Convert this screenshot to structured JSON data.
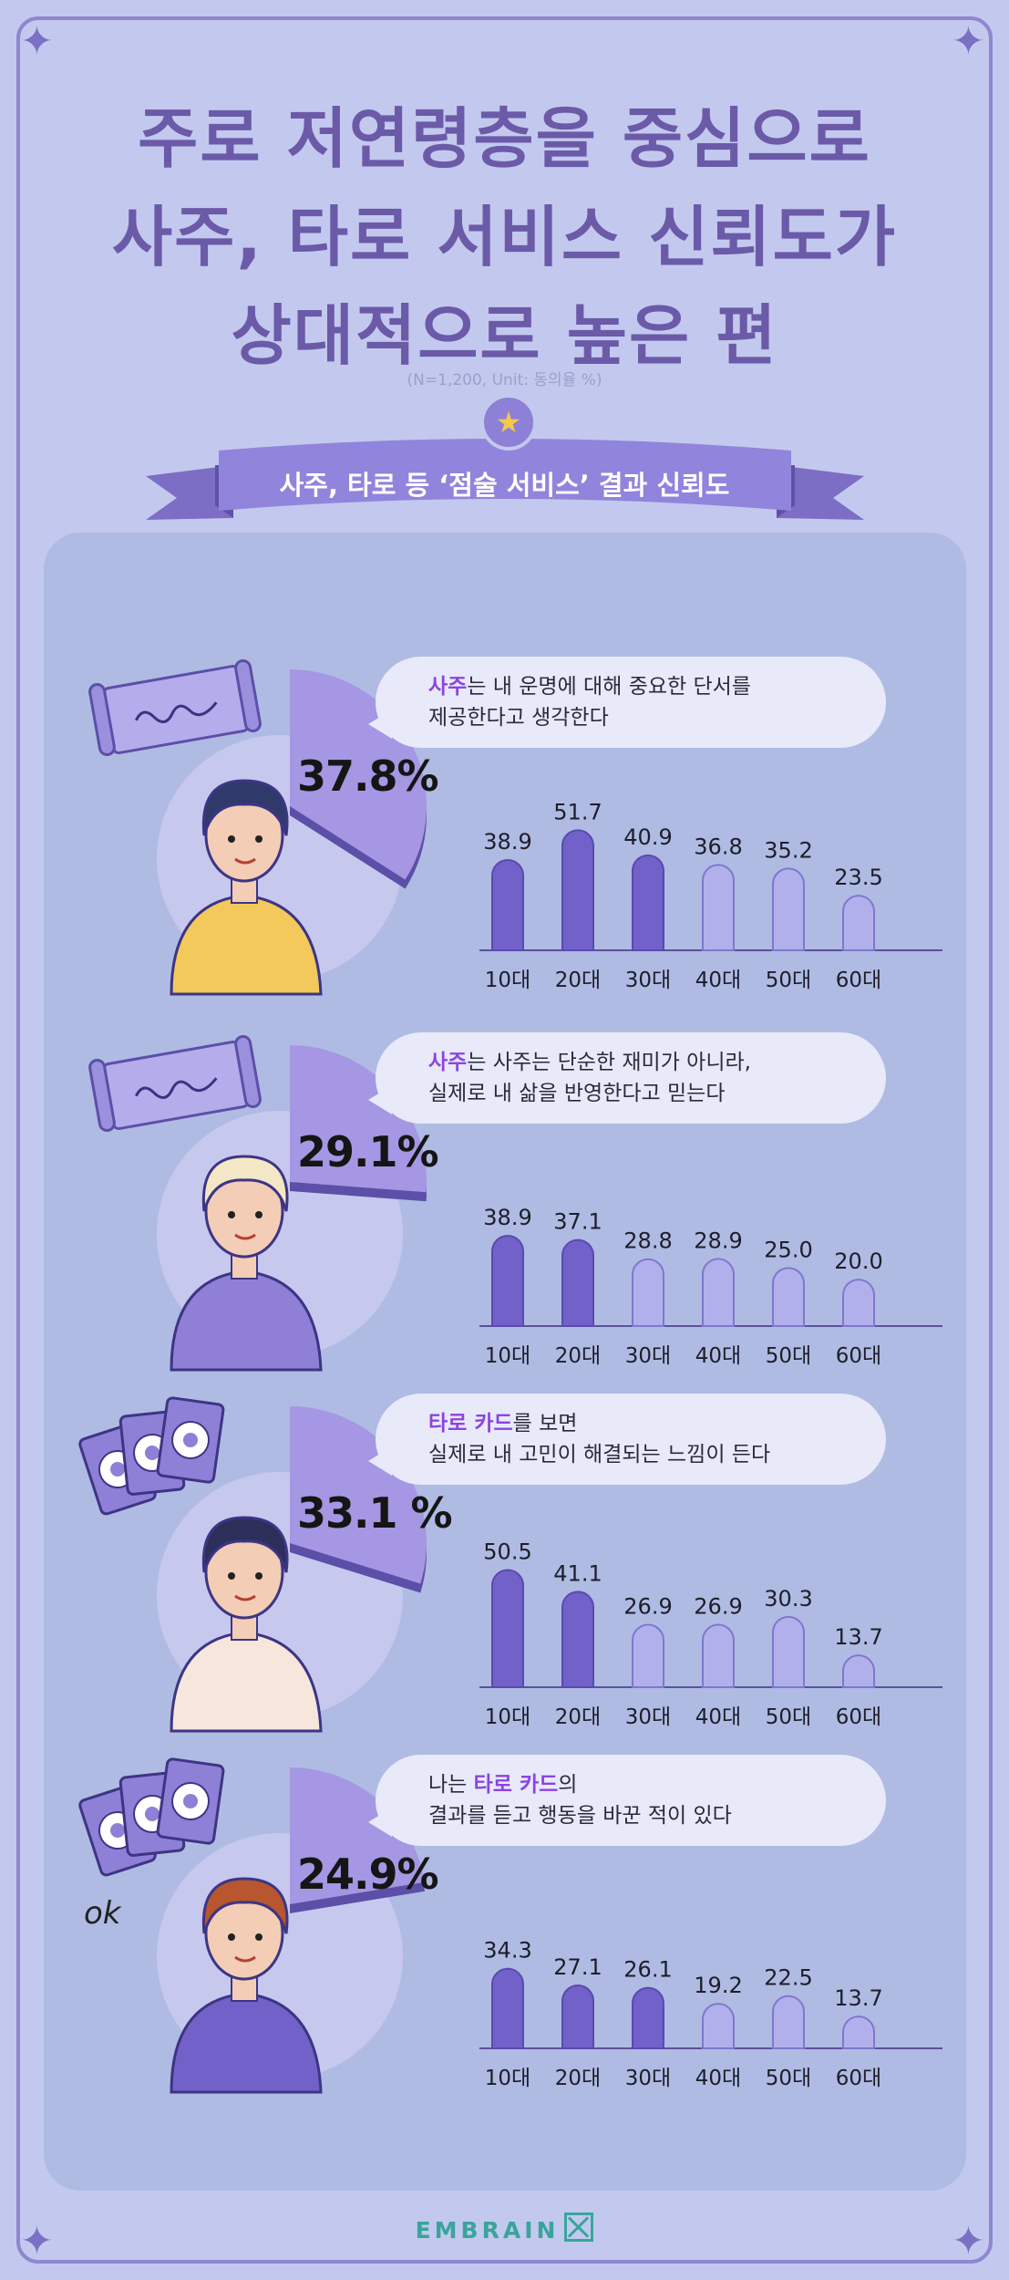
{
  "header": {
    "title_lines": [
      "주로 저연령층을 중심으로",
      "사주, 타로 서비스 신뢰도가",
      "상대적으로 높은 편"
    ],
    "subtitle": "(N=1,200, Unit: 동의율 %)",
    "ribbon_label": "사주, 타로 등 ‘점술 서비스’ 결과 신뢰도"
  },
  "colors": {
    "background": "#c3c9ee",
    "panel": "#afbbe3",
    "bar_dark": "#7261c8",
    "bar_light": "#b2b0ec",
    "highlight": "#8b44e0",
    "title": "#6b5aa8",
    "ribbon": "#8e80d6"
  },
  "chart_data": [
    {
      "type": "bar",
      "statement_highlight": "사주",
      "statement_line1_rest": "는 내 운명에 대해 중요한 단서를",
      "statement_line2": "제공한다고 생각한다",
      "total_label": "37.8%",
      "total": 37.8,
      "categories": [
        "10대",
        "20대",
        "30대",
        "40대",
        "50대",
        "60대"
      ],
      "values": [
        38.9,
        51.7,
        40.9,
        36.8,
        35.2,
        23.5
      ],
      "value_labels": [
        "38.9",
        "51.7",
        "40.9",
        "36.8",
        "35.2",
        "23.5"
      ],
      "highlighted_categories": [
        0,
        1,
        2
      ],
      "icon": "scroll-icon"
    },
    {
      "type": "bar",
      "statement_highlight": "사주",
      "statement_line1_rest": "는 사주는 단순한 재미가 아니라,",
      "statement_line2": "실제로 내 삶을 반영한다고 믿는다",
      "total_label": "29.1%",
      "total": 29.1,
      "categories": [
        "10대",
        "20대",
        "30대",
        "40대",
        "50대",
        "60대"
      ],
      "values": [
        38.9,
        37.1,
        28.8,
        28.9,
        25.0,
        20.0
      ],
      "value_labels": [
        "38.9",
        "37.1",
        "28.8",
        "28.9",
        "25.0",
        "20.0"
      ],
      "highlighted_categories": [
        0,
        1
      ],
      "icon": "scroll-icon"
    },
    {
      "type": "bar",
      "statement_highlight": "타로 카드",
      "statement_line1_rest": "를 보면",
      "statement_line2": "실제로 내 고민이 해결되는 느낌이 든다",
      "total_label": "33.1 %",
      "total": 33.1,
      "categories": [
        "10대",
        "20대",
        "30대",
        "40대",
        "50대",
        "60대"
      ],
      "values": [
        50.5,
        41.1,
        26.9,
        26.9,
        30.3,
        13.7
      ],
      "value_labels": [
        "50.5",
        "41.1",
        "26.9",
        "26.9",
        "30.3",
        "13.7"
      ],
      "highlighted_categories": [
        0,
        1
      ],
      "icon": "tarot-cards-icon"
    },
    {
      "type": "bar",
      "statement_prefix": "나는 ",
      "statement_highlight": "타로 카드",
      "statement_line1_rest": "의",
      "statement_line2": "결과를 듣고 행동을 바꾼 적이 있다",
      "total_label": "24.9%",
      "total": 24.9,
      "categories": [
        "10대",
        "20대",
        "30대",
        "40대",
        "50대",
        "60대"
      ],
      "values": [
        34.3,
        27.1,
        26.1,
        19.2,
        22.5,
        13.7
      ],
      "value_labels": [
        "34.3",
        "27.1",
        "26.1",
        "19.2",
        "22.5",
        "13.7"
      ],
      "highlighted_categories": [
        0,
        1,
        2
      ],
      "icon": "tarot-cards-icon",
      "doodle": "ok"
    }
  ],
  "footer": {
    "brand": "EMBRAIN"
  }
}
